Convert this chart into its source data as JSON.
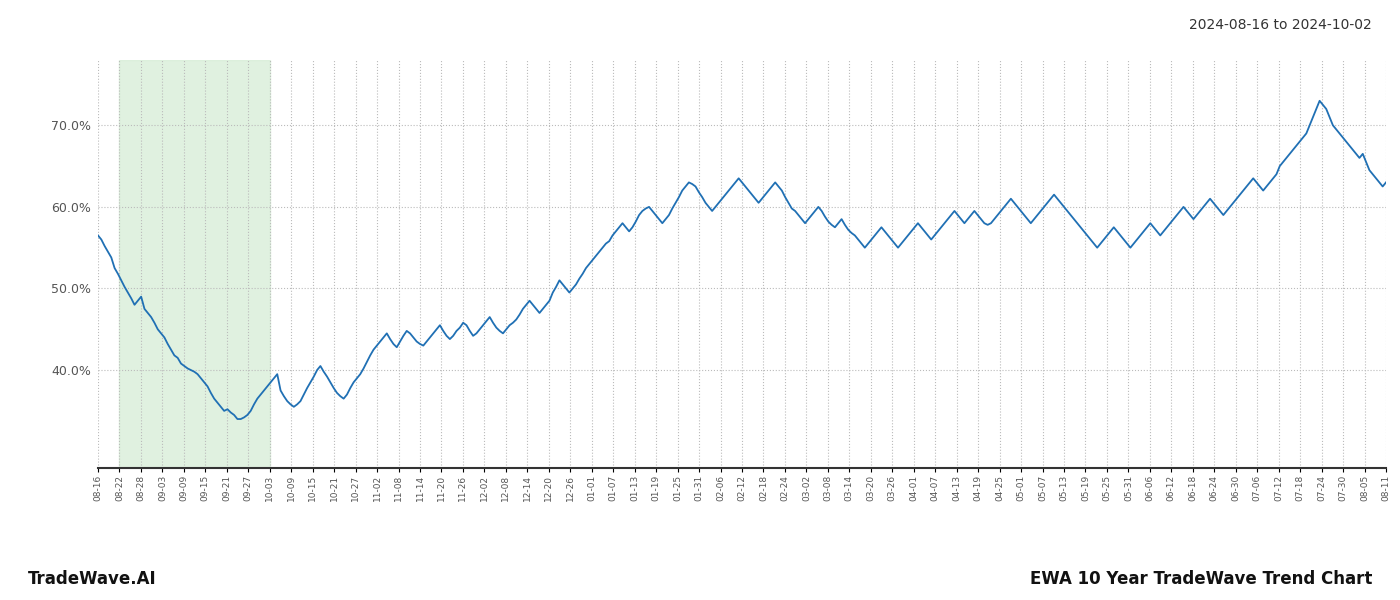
{
  "title_date_range": "2024-08-16 to 2024-10-02",
  "footer_left": "TradeWave.AI",
  "footer_right": "EWA 10 Year TradeWave Trend Chart",
  "line_color": "#2070b4",
  "line_width": 1.3,
  "highlight_color": "#d4ecd4",
  "highlight_alpha": 0.7,
  "background_color": "#ffffff",
  "grid_color": "#bbbbbb",
  "grid_style": ":",
  "ylim_min": 28,
  "ylim_max": 78,
  "yticks": [
    40.0,
    50.0,
    60.0,
    70.0
  ],
  "tick_labels": [
    "08-16",
    "08-22",
    "08-28",
    "09-03",
    "09-09",
    "09-15",
    "09-21",
    "09-27",
    "10-03",
    "10-09",
    "10-15",
    "10-21",
    "10-27",
    "11-02",
    "11-08",
    "11-14",
    "11-20",
    "11-26",
    "12-02",
    "12-08",
    "12-14",
    "12-20",
    "12-26",
    "01-01",
    "01-07",
    "01-13",
    "01-19",
    "01-25",
    "01-31",
    "02-06",
    "02-12",
    "02-18",
    "02-24",
    "03-02",
    "03-08",
    "03-14",
    "03-20",
    "03-26",
    "04-01",
    "04-07",
    "04-13",
    "04-19",
    "04-25",
    "05-01",
    "05-07",
    "05-13",
    "05-19",
    "05-25",
    "05-31",
    "06-06",
    "06-12",
    "06-18",
    "06-24",
    "06-30",
    "07-06",
    "07-12",
    "07-18",
    "07-24",
    "07-30",
    "08-05",
    "08-11"
  ],
  "highlight_x_start_label": "08-22",
  "highlight_x_end_label": "10-03",
  "values": [
    56.5,
    56.0,
    55.2,
    54.5,
    53.8,
    52.5,
    51.8,
    51.0,
    50.2,
    49.5,
    48.8,
    48.0,
    48.5,
    49.0,
    47.5,
    47.0,
    46.5,
    45.8,
    45.0,
    44.5,
    44.0,
    43.2,
    42.5,
    41.8,
    41.5,
    40.8,
    40.5,
    40.2,
    40.0,
    39.8,
    39.5,
    39.0,
    38.5,
    38.0,
    37.2,
    36.5,
    36.0,
    35.5,
    35.0,
    35.2,
    34.8,
    34.5,
    34.0,
    34.0,
    34.2,
    34.5,
    35.0,
    35.8,
    36.5,
    37.0,
    37.5,
    38.0,
    38.5,
    39.0,
    39.5,
    37.5,
    36.8,
    36.2,
    35.8,
    35.5,
    35.8,
    36.2,
    37.0,
    37.8,
    38.5,
    39.2,
    40.0,
    40.5,
    39.8,
    39.2,
    38.5,
    37.8,
    37.2,
    36.8,
    36.5,
    37.0,
    37.8,
    38.5,
    39.0,
    39.5,
    40.2,
    41.0,
    41.8,
    42.5,
    43.0,
    43.5,
    44.0,
    44.5,
    43.8,
    43.2,
    42.8,
    43.5,
    44.2,
    44.8,
    44.5,
    44.0,
    43.5,
    43.2,
    43.0,
    43.5,
    44.0,
    44.5,
    45.0,
    45.5,
    44.8,
    44.2,
    43.8,
    44.2,
    44.8,
    45.2,
    45.8,
    45.5,
    44.8,
    44.2,
    44.5,
    45.0,
    45.5,
    46.0,
    46.5,
    45.8,
    45.2,
    44.8,
    44.5,
    45.0,
    45.5,
    45.8,
    46.2,
    46.8,
    47.5,
    48.0,
    48.5,
    48.0,
    47.5,
    47.0,
    47.5,
    48.0,
    48.5,
    49.5,
    50.2,
    51.0,
    50.5,
    50.0,
    49.5,
    50.0,
    50.5,
    51.2,
    51.8,
    52.5,
    53.0,
    53.5,
    54.0,
    54.5,
    55.0,
    55.5,
    55.8,
    56.5,
    57.0,
    57.5,
    58.0,
    57.5,
    57.0,
    57.5,
    58.2,
    59.0,
    59.5,
    59.8,
    60.0,
    59.5,
    59.0,
    58.5,
    58.0,
    58.5,
    59.0,
    59.8,
    60.5,
    61.2,
    62.0,
    62.5,
    63.0,
    62.8,
    62.5,
    61.8,
    61.2,
    60.5,
    60.0,
    59.5,
    60.0,
    60.5,
    61.0,
    61.5,
    62.0,
    62.5,
    63.0,
    63.5,
    63.0,
    62.5,
    62.0,
    61.5,
    61.0,
    60.5,
    61.0,
    61.5,
    62.0,
    62.5,
    63.0,
    62.5,
    62.0,
    61.2,
    60.5,
    59.8,
    59.5,
    59.0,
    58.5,
    58.0,
    58.5,
    59.0,
    59.5,
    60.0,
    59.5,
    58.8,
    58.2,
    57.8,
    57.5,
    58.0,
    58.5,
    57.8,
    57.2,
    56.8,
    56.5,
    56.0,
    55.5,
    55.0,
    55.5,
    56.0,
    56.5,
    57.0,
    57.5,
    57.0,
    56.5,
    56.0,
    55.5,
    55.0,
    55.5,
    56.0,
    56.5,
    57.0,
    57.5,
    58.0,
    57.5,
    57.0,
    56.5,
    56.0,
    56.5,
    57.0,
    57.5,
    58.0,
    58.5,
    59.0,
    59.5,
    59.0,
    58.5,
    58.0,
    58.5,
    59.0,
    59.5,
    59.0,
    58.5,
    58.0,
    57.8,
    58.0,
    58.5,
    59.0,
    59.5,
    60.0,
    60.5,
    61.0,
    60.5,
    60.0,
    59.5,
    59.0,
    58.5,
    58.0,
    58.5,
    59.0,
    59.5,
    60.0,
    60.5,
    61.0,
    61.5,
    61.0,
    60.5,
    60.0,
    59.5,
    59.0,
    58.5,
    58.0,
    57.5,
    57.0,
    56.5,
    56.0,
    55.5,
    55.0,
    55.5,
    56.0,
    56.5,
    57.0,
    57.5,
    57.0,
    56.5,
    56.0,
    55.5,
    55.0,
    55.5,
    56.0,
    56.5,
    57.0,
    57.5,
    58.0,
    57.5,
    57.0,
    56.5,
    57.0,
    57.5,
    58.0,
    58.5,
    59.0,
    59.5,
    60.0,
    59.5,
    59.0,
    58.5,
    59.0,
    59.5,
    60.0,
    60.5,
    61.0,
    60.5,
    60.0,
    59.5,
    59.0,
    59.5,
    60.0,
    60.5,
    61.0,
    61.5,
    62.0,
    62.5,
    63.0,
    63.5,
    63.0,
    62.5,
    62.0,
    62.5,
    63.0,
    63.5,
    64.0,
    65.0,
    65.5,
    66.0,
    66.5,
    67.0,
    67.5,
    68.0,
    68.5,
    69.0,
    70.0,
    71.0,
    72.0,
    73.0,
    72.5,
    72.0,
    71.0,
    70.0,
    69.5,
    69.0,
    68.5,
    68.0,
    67.5,
    67.0,
    66.5,
    66.0,
    66.5,
    65.5,
    64.5,
    64.0,
    63.5,
    63.0,
    62.5,
    63.0
  ]
}
